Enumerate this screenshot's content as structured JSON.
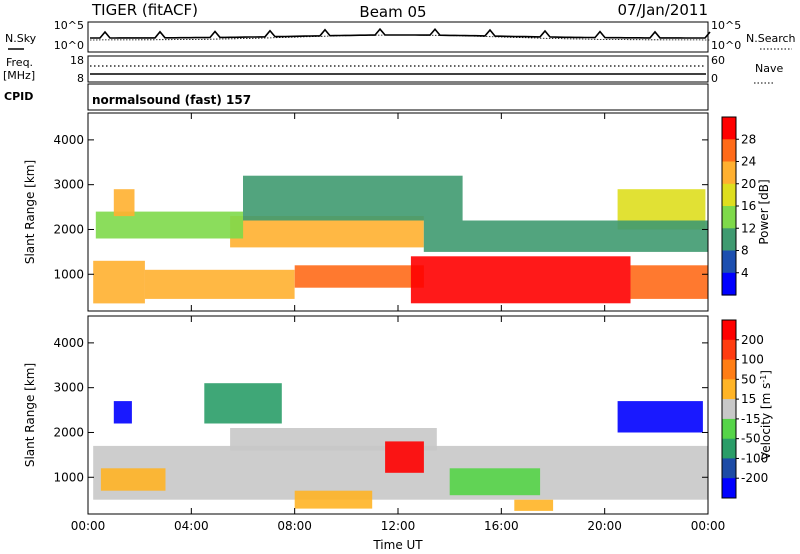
{
  "header": {
    "radar": "TIGER (fitACF)",
    "beam": "Beam 05",
    "date": "07/Jan/2011"
  },
  "info_panels": {
    "nsky_label": "N.Sky",
    "nsearch_label": "N.Search",
    "nsky_ticks": [
      "10^5",
      "10^0"
    ],
    "nsearch_ticks": [
      "10^5",
      "10^0"
    ],
    "freq_label": [
      "Freq.",
      "[MHz]"
    ],
    "freq_ticks": [
      "18",
      "8"
    ],
    "nave_label": "Nave",
    "nave_ticks": [
      "60",
      "0"
    ],
    "cpid_label": "CPID",
    "cpid_value": "normalsound (fast) 157"
  },
  "colors": {
    "power_scale": [
      "#0000ff",
      "#1c4fb0",
      "#3f9a70",
      "#7ed94a",
      "#dede1e",
      "#ffb030",
      "#ff6a18",
      "#ff0000"
    ],
    "velocity_scale": [
      "#0000ff",
      "#1c4ba6",
      "#2a9d68",
      "#55d448",
      "#c8c8c8",
      "#ffb426",
      "#ff7d14",
      "#ff3c10",
      "#ff0000"
    ]
  },
  "chart_data": [
    {
      "type": "heatmap",
      "name": "power",
      "ylabel": "Slant Range [km]",
      "x_ticks": [
        "00:00",
        "04:00",
        "08:00",
        "12:00",
        "16:00",
        "20:00",
        "00:00"
      ],
      "y_ticks": [
        "1000",
        "2000",
        "3000",
        "4000"
      ],
      "x_range_hours": [
        0,
        24
      ],
      "y_range_km": [
        180,
        4600
      ],
      "colorbar": {
        "label": "Power [dB]",
        "ticks": [
          "28",
          "24",
          "20",
          "16",
          "12",
          "8",
          "4"
        ],
        "range": [
          0,
          30
        ]
      },
      "echo_regions": [
        {
          "t0": 0.2,
          "t1": 2.2,
          "r0": 350,
          "r1": 1300,
          "value": 22
        },
        {
          "t0": 2.2,
          "t1": 8.0,
          "r0": 450,
          "r1": 1100,
          "value": 20
        },
        {
          "t0": 8.0,
          "t1": 13.0,
          "r0": 700,
          "r1": 1200,
          "value": 24
        },
        {
          "t0": 12.5,
          "t1": 21.0,
          "r0": 350,
          "r1": 1400,
          "value": 28
        },
        {
          "t0": 21.0,
          "t1": 24.0,
          "r0": 450,
          "r1": 1200,
          "value": 24
        },
        {
          "t0": 5.5,
          "t1": 13.0,
          "r0": 1600,
          "r1": 2300,
          "value": 22
        },
        {
          "t0": 0.3,
          "t1": 6.0,
          "r0": 1800,
          "r1": 2400,
          "value": 12
        },
        {
          "t0": 1.0,
          "t1": 1.8,
          "r0": 2300,
          "r1": 2900,
          "value": 22
        },
        {
          "t0": 20.5,
          "t1": 23.9,
          "r0": 2000,
          "r1": 2900,
          "value": 18
        },
        {
          "t0": 6.0,
          "t1": 14.5,
          "r0": 2200,
          "r1": 3200,
          "value": 9
        },
        {
          "t0": 13.0,
          "t1": 24.0,
          "r0": 1500,
          "r1": 2200,
          "value": 8
        }
      ]
    },
    {
      "type": "heatmap",
      "name": "velocity",
      "ylabel": "Slant Range [km]",
      "xlabel": "Time UT",
      "x_ticks": [
        "00:00",
        "04:00",
        "08:00",
        "12:00",
        "16:00",
        "20:00",
        "00:00"
      ],
      "y_ticks": [
        "1000",
        "2000",
        "3000",
        "4000"
      ],
      "x_range_hours": [
        0,
        24
      ],
      "y_range_km": [
        180,
        4600
      ],
      "colorbar": {
        "label": "Velocity [m s^-1]",
        "ticks": [
          "200",
          "100",
          "50",
          "15",
          "-15",
          "-50",
          "-100",
          "-200"
        ],
        "range": [
          -250,
          250
        ]
      },
      "echo_regions": [
        {
          "t0": 0.2,
          "t1": 24.0,
          "r0": 500,
          "r1": 1700,
          "value": 0
        },
        {
          "t0": 5.5,
          "t1": 13.5,
          "r0": 1600,
          "r1": 2100,
          "value": 0
        },
        {
          "t0": 0.5,
          "t1": 3.0,
          "r0": 700,
          "r1": 1200,
          "value": 40
        },
        {
          "t0": 8.0,
          "t1": 11.0,
          "r0": 300,
          "r1": 700,
          "value": 40
        },
        {
          "t0": 11.5,
          "t1": 13.0,
          "r0": 1100,
          "r1": 1800,
          "value": 220
        },
        {
          "t0": 16.5,
          "t1": 18.0,
          "r0": 250,
          "r1": 500,
          "value": 40
        },
        {
          "t0": 1.0,
          "t1": 1.7,
          "r0": 2200,
          "r1": 2700,
          "value": -220
        },
        {
          "t0": 20.5,
          "t1": 23.8,
          "r0": 2000,
          "r1": 2700,
          "value": -220
        },
        {
          "t0": 4.5,
          "t1": 7.5,
          "r0": 2200,
          "r1": 3100,
          "value": -120
        },
        {
          "t0": 14.0,
          "t1": 17.5,
          "r0": 600,
          "r1": 1200,
          "value": -60
        }
      ]
    }
  ]
}
